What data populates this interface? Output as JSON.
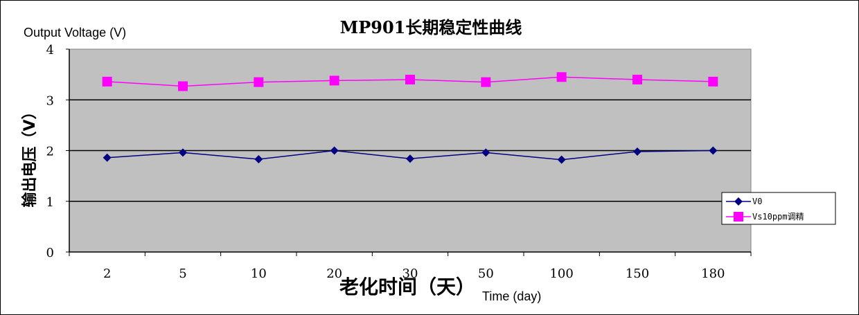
{
  "chart_data": {
    "type": "line",
    "title": "MP901长期稳定性曲线",
    "ylabel": "输出电压（V）",
    "ylabel_en": "Output Voltage (V)",
    "xlabel": "老化时间（天）",
    "xlabel_en": "Time (day)",
    "categories": [
      "2",
      "5",
      "10",
      "20",
      "30",
      "50",
      "100",
      "150",
      "180"
    ],
    "ylim": [
      0,
      4
    ],
    "yticks": [
      "0",
      "1",
      "2",
      "3",
      "4"
    ],
    "grid": true,
    "legend_position": "right",
    "series": [
      {
        "name": "V0",
        "values": [
          1.86,
          1.96,
          1.83,
          2.0,
          1.84,
          1.96,
          1.82,
          1.98,
          2.0
        ],
        "color": "#000080",
        "marker": "diamond"
      },
      {
        "name": "Vs10ppm调精",
        "values": [
          3.36,
          3.27,
          3.35,
          3.38,
          3.4,
          3.35,
          3.45,
          3.4,
          3.36
        ],
        "color": "#FF00FF",
        "marker": "square"
      }
    ],
    "plot_background": "#C0C0C0"
  }
}
